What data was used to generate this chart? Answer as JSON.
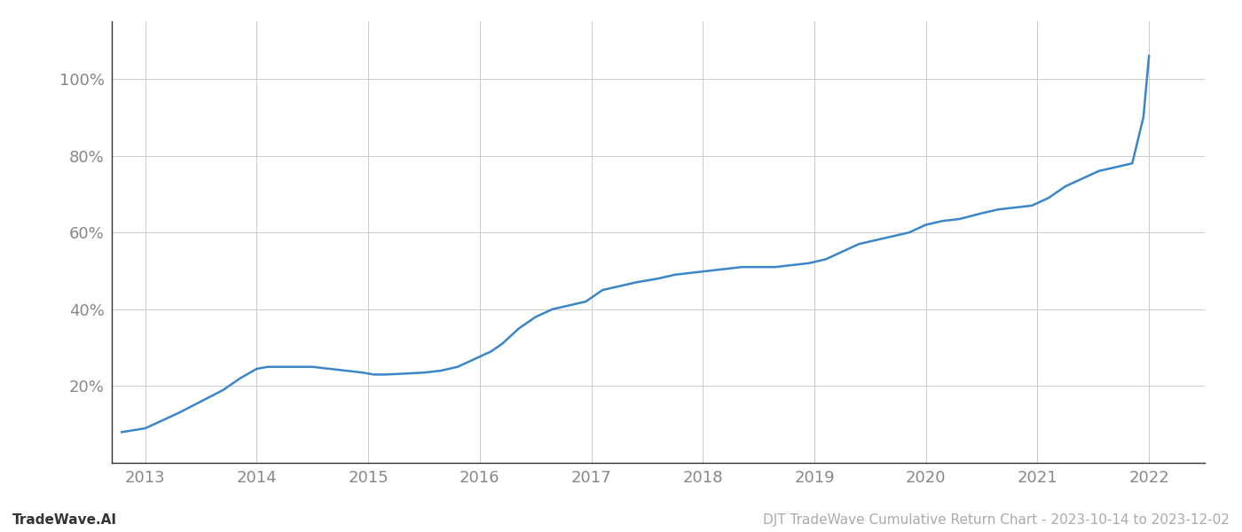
{
  "x_values": [
    2012.79,
    2013.0,
    2013.15,
    2013.3,
    2013.5,
    2013.7,
    2013.85,
    2014.0,
    2014.1,
    2014.2,
    2014.35,
    2014.5,
    2014.65,
    2014.8,
    2014.95,
    2015.05,
    2015.15,
    2015.3,
    2015.5,
    2015.65,
    2015.8,
    2015.95,
    2016.1,
    2016.2,
    2016.35,
    2016.5,
    2016.65,
    2016.8,
    2016.95,
    2017.1,
    2017.25,
    2017.4,
    2017.6,
    2017.75,
    2017.9,
    2018.05,
    2018.2,
    2018.35,
    2018.5,
    2018.65,
    2018.8,
    2018.95,
    2019.1,
    2019.25,
    2019.4,
    2019.55,
    2019.7,
    2019.85,
    2020.0,
    2020.15,
    2020.3,
    2020.5,
    2020.65,
    2020.8,
    2020.95,
    2021.1,
    2021.25,
    2021.4,
    2021.55,
    2021.7,
    2021.85,
    2021.95,
    2022.0
  ],
  "y_values": [
    8,
    9,
    11,
    13,
    16,
    19,
    22,
    24.5,
    25,
    25,
    25,
    25,
    24.5,
    24,
    23.5,
    23,
    23,
    23.2,
    23.5,
    24,
    25,
    27,
    29,
    31,
    35,
    38,
    40,
    41,
    42,
    45,
    46,
    47,
    48,
    49,
    49.5,
    50,
    50.5,
    51,
    51,
    51,
    51.5,
    52,
    53,
    55,
    57,
    58,
    59,
    60,
    62,
    63,
    63.5,
    65,
    66,
    66.5,
    67,
    69,
    72,
    74,
    76,
    77,
    78,
    90,
    106
  ],
  "line_color": "#3a86c8",
  "line_width": 1.8,
  "background_color": "#ffffff",
  "grid_color": "#cccccc",
  "x_ticks": [
    2013,
    2014,
    2015,
    2016,
    2017,
    2018,
    2019,
    2020,
    2021,
    2022
  ],
  "y_ticks": [
    20,
    40,
    60,
    80,
    100
  ],
  "y_tick_labels": [
    "20%",
    "40%",
    "60%",
    "80%",
    "100%"
  ],
  "xlim": [
    2012.7,
    2022.5
  ],
  "ylim": [
    0,
    115
  ],
  "footer_left": "TradeWave.AI",
  "footer_right": "DJT TradeWave Cumulative Return Chart - 2023-10-14 to 2023-12-02",
  "footer_color": "#aaaaaa",
  "footer_fontsize": 11,
  "tick_fontsize": 13,
  "tick_color": "#888888",
  "spine_color": "#333333"
}
